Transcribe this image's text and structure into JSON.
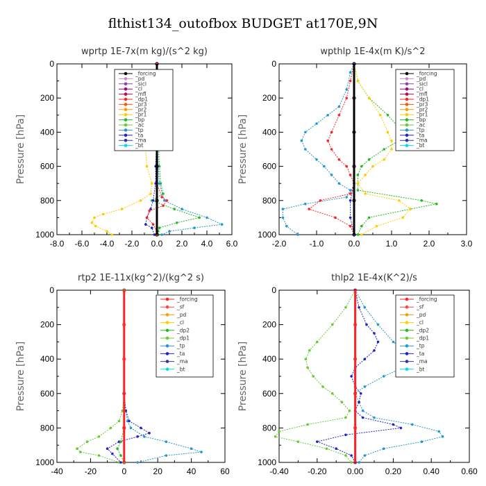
{
  "title": "flthist134_outofbox  BUDGET at170E,9N",
  "chart_data": [
    {
      "type": "line",
      "title": "wprtp  1E-7x(m kg)/(s^2 kg)",
      "ylabel": "Pressure [hPa]",
      "xlim": [
        -8,
        6
      ],
      "ylim": [
        1000,
        0
      ],
      "xticks": [
        "-8.0",
        "-6.0",
        "-4.0",
        "-2.0",
        "0.0",
        "2.0",
        "4.0",
        "6.0"
      ],
      "xtick_values": [
        -8,
        -6,
        -4,
        -2,
        0,
        2,
        4,
        6
      ],
      "yticks": [
        "0",
        "200",
        "400",
        "600",
        "800",
        "1000"
      ],
      "ytick_values": [
        0,
        200,
        400,
        600,
        800,
        1000
      ],
      "legend": [
        "_forcing",
        "_pd",
        "_sicl",
        "_cl",
        "_mfl",
        "_dp1",
        "_pr3",
        "_pr2",
        "_pr1",
        "_bp",
        "_ac",
        "_tp",
        "_ta",
        "_ma",
        "_bt"
      ],
      "legend_colors": [
        "#000000",
        "#cc88cc",
        "#8844aa",
        "#aa0077",
        "#cc0044",
        "#ff2222",
        "#ff5500",
        "#ff9900",
        "#ffcc00",
        "#22bb22",
        "#66cc33",
        "#2299cc",
        "#2222cc",
        "#3333aa",
        "#00ddee"
      ],
      "series": [
        {
          "name": "_pr1",
          "color": "#ffcc00",
          "p": [
            0,
            200,
            300,
            350,
            400,
            500,
            600,
            700,
            760,
            800,
            850,
            880,
            900,
            930,
            950,
            980,
            1000
          ],
          "values": [
            0,
            0,
            -0.1,
            -0.3,
            -0.6,
            -0.9,
            -0.8,
            -0.4,
            -0.5,
            -1.3,
            -2.8,
            -4.3,
            -5.0,
            -5.2,
            -4.9,
            -4.0,
            -3.6
          ]
        },
        {
          "name": "_bp",
          "color": "#22bb22",
          "p": [
            0,
            200,
            400,
            600,
            700,
            760,
            800,
            850,
            900,
            930,
            960,
            980,
            1000
          ],
          "values": [
            0,
            0,
            0.1,
            0.2,
            0.3,
            0.5,
            -0.4,
            1.4,
            3.4,
            1.6,
            0.2,
            0.1,
            0.1
          ]
        },
        {
          "name": "_tp",
          "color": "#2299cc",
          "p": [
            0,
            400,
            600,
            700,
            800,
            850,
            900,
            940,
            960,
            980,
            1000
          ],
          "values": [
            0,
            0,
            0.1,
            0.2,
            0.6,
            2.0,
            4.0,
            5.2,
            3.0,
            1.0,
            0.4
          ]
        },
        {
          "name": "_ta",
          "color": "#2222cc",
          "p": [
            0,
            400,
            600,
            700,
            800,
            850,
            900,
            940,
            960,
            1000
          ],
          "values": [
            0,
            0,
            -0.1,
            -0.1,
            -0.3,
            -0.5,
            -0.8,
            -0.9,
            -0.4,
            -0.2
          ]
        },
        {
          "name": "_dp1",
          "color": "#ff2222",
          "p": [
            0,
            600,
            700,
            780,
            800,
            830,
            860,
            900,
            940,
            980,
            1000
          ],
          "values": [
            0,
            0,
            0,
            0.4,
            0.8,
            0.5,
            -0.6,
            -0.8,
            -0.3,
            0,
            0
          ]
        },
        {
          "name": "_forcing",
          "color": "#000000",
          "p": [
            0,
            200,
            400,
            600,
            800,
            1000
          ],
          "values": [
            0,
            0,
            0,
            0,
            0,
            0
          ]
        }
      ]
    },
    {
      "type": "line",
      "title": "wpthlp  1E-4x(m K)/s^2",
      "ylabel": "Pressure [hPa]",
      "xlim": [
        -2,
        3
      ],
      "ylim": [
        1000,
        0
      ],
      "xticks": [
        "-2.0",
        "-1.0",
        "0.0",
        "1.0",
        "2.0",
        "3.0"
      ],
      "xtick_values": [
        -2,
        -1,
        0,
        1,
        2,
        3
      ],
      "yticks": [
        "0",
        "200",
        "400",
        "600",
        "800",
        "1000"
      ],
      "ytick_values": [
        0,
        200,
        400,
        600,
        800,
        1000
      ],
      "legend": [
        "_forcing",
        "_pd",
        "_sicl",
        "_cl",
        "_mfl",
        "_dp1",
        "_pr3",
        "_pr2",
        "_pr1",
        "_bp",
        "_ac",
        "_tp",
        "_ta",
        "_ma",
        "_bt"
      ],
      "legend_colors": [
        "#000000",
        "#cc88cc",
        "#8844aa",
        "#aa0077",
        "#cc0044",
        "#ff2222",
        "#ff5500",
        "#ff9900",
        "#ffcc00",
        "#22bb22",
        "#66cc33",
        "#2299cc",
        "#2222cc",
        "#3333aa",
        "#00ddee"
      ],
      "series": [
        {
          "name": "_tp",
          "color": "#2299cc",
          "p": [
            0,
            50,
            150,
            250,
            300,
            350,
            400,
            450,
            500,
            560,
            600,
            650,
            700,
            740,
            780,
            820,
            850,
            900,
            950,
            1000
          ],
          "values": [
            0,
            -0.1,
            -0.2,
            -0.4,
            -0.7,
            -1.0,
            -1.3,
            -1.4,
            -1.3,
            -1.0,
            -0.8,
            -0.6,
            -0.4,
            -0.1,
            -0.2,
            -1.3,
            -1.9,
            -1.9,
            -1.8,
            -1.5
          ]
        },
        {
          "name": "_dp1",
          "color": "#ff2222",
          "p": [
            0,
            100,
            200,
            300,
            400,
            450,
            500,
            560,
            600,
            650,
            700,
            760,
            800,
            850,
            900,
            950,
            1000
          ],
          "values": [
            0,
            -0.1,
            -0.2,
            -0.4,
            -0.6,
            -0.7,
            -0.6,
            -0.4,
            -0.2,
            -0.1,
            0,
            -0.1,
            -0.9,
            -1.2,
            -0.5,
            -0.1,
            0
          ]
        },
        {
          "name": "_bp",
          "color": "#22bb22",
          "p": [
            0,
            100,
            200,
            300,
            400,
            450,
            500,
            560,
            600,
            650,
            700,
            740,
            800,
            820,
            850,
            900,
            950,
            1000
          ],
          "values": [
            0,
            0.1,
            0.4,
            0.9,
            1.3,
            1.2,
            0.8,
            0.4,
            0.2,
            0.1,
            0.1,
            0.1,
            1.8,
            2.2,
            1.5,
            0.4,
            0.2,
            0.1
          ]
        },
        {
          "name": "_pr1",
          "color": "#ffcc00",
          "p": [
            0,
            100,
            200,
            300,
            400,
            450,
            500,
            560,
            600,
            650,
            700,
            760,
            800,
            850,
            900,
            950,
            1000
          ],
          "values": [
            0,
            0.1,
            0.4,
            0.7,
            0.9,
            1.0,
            1.0,
            0.8,
            0.5,
            0.3,
            0.1,
            0.3,
            1.2,
            1.5,
            1.3,
            0.6,
            0.2
          ]
        },
        {
          "name": "_ta",
          "color": "#2222cc",
          "p": [
            0,
            400,
            700,
            800,
            900,
            1000
          ],
          "values": [
            0,
            0,
            0,
            -0.1,
            -0.1,
            0
          ]
        },
        {
          "name": "_forcing",
          "color": "#000000",
          "p": [
            0,
            200,
            400,
            600,
            800,
            1000
          ],
          "values": [
            0,
            0,
            0,
            0,
            0,
            0
          ]
        }
      ]
    },
    {
      "type": "line",
      "title": "rtp2  1E-11x(kg^2)/(kg^2 s)",
      "ylabel": "Pressure [hPa]",
      "xlim": [
        -40,
        60
      ],
      "ylim": [
        1000,
        0
      ],
      "xticks": [
        "-40",
        "-20",
        "0",
        "20",
        "40",
        "60"
      ],
      "xtick_values": [
        -40,
        -20,
        0,
        20,
        40,
        60
      ],
      "yticks": [
        "0",
        "200",
        "400",
        "600",
        "800",
        "1000"
      ],
      "ytick_values": [
        0,
        200,
        400,
        600,
        800,
        1000
      ],
      "legend": [
        "_forcing",
        "_sf",
        "_pd",
        "_cl",
        "_dp2",
        "_dp1",
        "_tp",
        "_ta",
        "_ma",
        "_bt"
      ],
      "legend_colors": [
        "#ff2222",
        "#ff4444",
        "#ff9900",
        "#ffcc00",
        "#22bb22",
        "#66cc33",
        "#2299cc",
        "#2222cc",
        "#3333aa",
        "#00ddee"
      ],
      "series": [
        {
          "name": "_dp1",
          "color": "#66cc33",
          "p": [
            0,
            600,
            700,
            760,
            800,
            850,
            880,
            920,
            940,
            960,
            1000
          ],
          "values": [
            0,
            0,
            -1,
            -3,
            -8,
            -15,
            -22,
            -28,
            -26,
            -15,
            -3
          ]
        },
        {
          "name": "_tp",
          "color": "#2299cc",
          "p": [
            0,
            600,
            700,
            760,
            800,
            850,
            880,
            920,
            940,
            960,
            1000
          ],
          "values": [
            0,
            0,
            1,
            2,
            4,
            12,
            25,
            40,
            46,
            25,
            8
          ]
        },
        {
          "name": "_ta",
          "color": "#2222cc",
          "p": [
            0,
            600,
            700,
            760,
            800,
            830,
            850,
            880,
            920,
            950,
            1000
          ],
          "values": [
            0,
            0,
            1,
            3,
            10,
            15,
            8,
            -3,
            -10,
            -7,
            -2
          ]
        },
        {
          "name": "_dp2",
          "color": "#22bb22",
          "p": [
            0,
            700,
            800,
            880,
            920,
            960,
            1000
          ],
          "values": [
            0,
            0,
            0,
            -2,
            -4,
            -2,
            0
          ]
        },
        {
          "name": "_forcing",
          "color": "#ff2222",
          "p": [
            0,
            200,
            400,
            600,
            800,
            1000
          ],
          "values": [
            0,
            0,
            0,
            0,
            0,
            0
          ]
        }
      ]
    },
    {
      "type": "line",
      "title": "thlp2  1E-4x(K^2)/s",
      "ylabel": "Pressure [hPa]",
      "xlim": [
        -0.4,
        0.6
      ],
      "ylim": [
        1000,
        0
      ],
      "xticks": [
        "-0.40",
        "-0.20",
        "0.00",
        "0.20",
        "0.40",
        "0.60"
      ],
      "xtick_values": [
        -0.4,
        -0.2,
        0,
        0.2,
        0.4,
        0.6
      ],
      "yticks": [
        "0",
        "200",
        "400",
        "600",
        "800",
        "1000"
      ],
      "ytick_values": [
        0,
        200,
        400,
        600,
        800,
        1000
      ],
      "legend": [
        "_forcing",
        "_sf",
        "_pd",
        "_cl",
        "_dp2",
        "_dp1",
        "_tp",
        "_ta",
        "_ma",
        "_bt"
      ],
      "legend_colors": [
        "#ff2222",
        "#ff4444",
        "#ff9900",
        "#ffcc00",
        "#22bb22",
        "#66cc33",
        "#2299cc",
        "#2222cc",
        "#3333aa",
        "#00ddee"
      ],
      "series": [
        {
          "name": "_dp1",
          "color": "#66cc33",
          "p": [
            0,
            100,
            200,
            300,
            350,
            400,
            450,
            500,
            560,
            600,
            650,
            700,
            740,
            780,
            820,
            850,
            880,
            920,
            960,
            1000
          ],
          "values": [
            0,
            -0.05,
            -0.12,
            -0.2,
            -0.24,
            -0.26,
            -0.25,
            -0.22,
            -0.17,
            -0.12,
            -0.07,
            -0.03,
            -0.05,
            -0.25,
            -0.4,
            -0.42,
            -0.3,
            -0.15,
            -0.05,
            -0.02
          ]
        },
        {
          "name": "_tp",
          "color": "#2299cc",
          "p": [
            0,
            100,
            200,
            300,
            350,
            400,
            450,
            500,
            560,
            600,
            650,
            700,
            740,
            780,
            820,
            850,
            880,
            920,
            960,
            1000
          ],
          "values": [
            0,
            0.05,
            0.12,
            0.2,
            0.26,
            0.28,
            0.25,
            0.15,
            0.05,
            0.0,
            0.02,
            0.04,
            0.1,
            0.3,
            0.44,
            0.46,
            0.35,
            0.15,
            0.05,
            0.02
          ]
        },
        {
          "name": "_ta",
          "color": "#2222cc",
          "p": [
            0,
            100,
            200,
            250,
            300,
            350,
            400,
            450,
            500,
            560,
            600,
            650,
            700,
            740,
            780,
            800,
            840,
            880,
            920,
            960,
            1000
          ],
          "values": [
            0,
            0.02,
            0.06,
            0.1,
            0.12,
            0.1,
            0.05,
            0.0,
            -0.02,
            0.0,
            0.03,
            0.02,
            0.0,
            0.04,
            0.2,
            0.24,
            -0.05,
            -0.2,
            -0.1,
            -0.02,
            0
          ]
        },
        {
          "name": "_forcing",
          "color": "#ff2222",
          "p": [
            0,
            200,
            400,
            600,
            800,
            1000
          ],
          "values": [
            0,
            0,
            0,
            0,
            0,
            0
          ]
        }
      ]
    }
  ]
}
